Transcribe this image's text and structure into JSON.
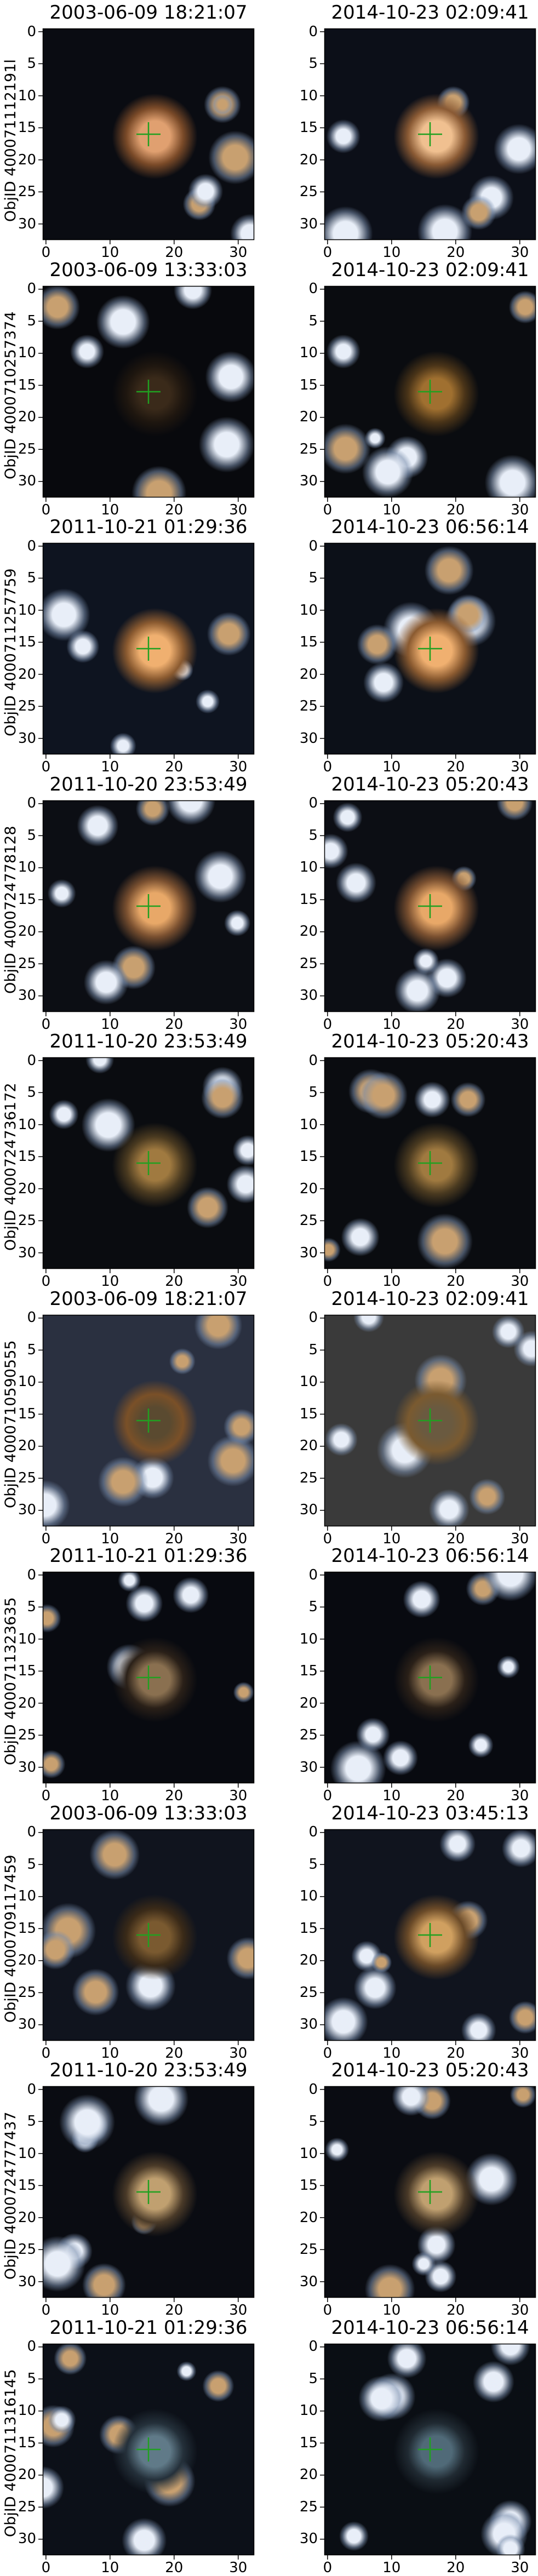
{
  "figure": {
    "x_ticks": [
      "0",
      "10",
      "20",
      "30"
    ],
    "y_ticks": [
      "0",
      "5",
      "10",
      "15",
      "20",
      "25",
      "30"
    ],
    "crosshair_color": "#20a020",
    "rows": [
      {
        "objid": "ObjID 400071112191l",
        "left": {
          "title": "2003-06-09 18:21:07"
        },
        "right": {
          "title": "2014-10-23 02:09:41"
        },
        "left_image": {
          "bg": "#0a0c12",
          "center": "#e0a070",
          "halo": "#7a4a28"
        },
        "right_image": {
          "bg": "#0c0f18",
          "center": "#f0c090",
          "halo": "#8a5a34"
        }
      },
      {
        "objid": "ObjID 4000710257374",
        "left": {
          "title": "2003-06-09 13:33:03"
        },
        "right": {
          "title": "2014-10-23 02:09:41"
        },
        "left_image": {
          "bg": "#08090d",
          "center": "#3a2a1a",
          "halo": "#1e160f"
        },
        "right_image": {
          "bg": "#0a0c10",
          "center": "#a07030",
          "halo": "#4a3418"
        }
      },
      {
        "objid": "ObjID 4000711257759",
        "left": {
          "title": "2011-10-21 01:29:36"
        },
        "right": {
          "title": "2014-10-23 06:56:14"
        },
        "left_image": {
          "bg": "#0e1420",
          "center": "#f0b070",
          "halo": "#8a5a30"
        },
        "right_image": {
          "bg": "#0c1018",
          "center": "#f0b070",
          "halo": "#8a5a30"
        }
      },
      {
        "objid": "ObjID 4000724778128",
        "left": {
          "title": "2011-10-20 23:53:49"
        },
        "right": {
          "title": "2014-10-23 05:20:43"
        },
        "left_image": {
          "bg": "#0c0e14",
          "center": "#e8a868",
          "halo": "#7a5030"
        },
        "right_image": {
          "bg": "#0c0e14",
          "center": "#e8a868",
          "halo": "#7a5030"
        }
      },
      {
        "objid": "ObjID 4000724736172",
        "left": {
          "title": "2011-10-20 23:53:49"
        },
        "right": {
          "title": "2014-10-23 05:20:43"
        },
        "left_image": {
          "bg": "#0a0c10",
          "center": "#a07a40",
          "halo": "#4a3a20"
        },
        "right_image": {
          "bg": "#0a0c10",
          "center": "#a07a40",
          "halo": "#4a3a20"
        }
      },
      {
        "objid": "ObjID 4000710590555",
        "left": {
          "title": "2003-06-09 18:21:07"
        },
        "right": {
          "title": "2014-10-23 02:09:41"
        },
        "left_image": {
          "bg": "#2a3040",
          "center": "#5a4a30",
          "halo": "#7a5028"
        },
        "right_image": {
          "bg": "#3a3a3a",
          "center": "#6a5a40",
          "halo": "#7a5a30"
        }
      },
      {
        "objid": "ObjID 4000711323635",
        "left": {
          "title": "2011-10-21 01:29:36"
        },
        "right": {
          "title": "2014-10-23 06:56:14"
        },
        "left_image": {
          "bg": "#080a10",
          "center": "#8a7050",
          "halo": "#2a2018"
        },
        "right_image": {
          "bg": "#080a10",
          "center": "#8a7050",
          "halo": "#2a2018"
        }
      },
      {
        "objid": "ObjID 4000709117459",
        "left": {
          "title": "2003-06-09 13:33:03"
        },
        "right": {
          "title": "2014-10-23 03:45:13"
        },
        "left_image": {
          "bg": "#10141e",
          "center": "#7a5a30",
          "halo": "#3a2a18"
        },
        "right_image": {
          "bg": "#10141e",
          "center": "#d0a060",
          "halo": "#6a4a28"
        }
      },
      {
        "objid": "ObjID 4000724777437",
        "left": {
          "title": "2011-10-20 23:53:49"
        },
        "right": {
          "title": "2014-10-23 05:20:43"
        },
        "left_image": {
          "bg": "#0a0c12",
          "center": "#c0a070",
          "halo": "#4a3a28"
        },
        "right_image": {
          "bg": "#0a0c12",
          "center": "#c0a070",
          "halo": "#4a3a28"
        }
      },
      {
        "objid": "ObjID 4000711316145",
        "left": {
          "title": "2011-10-21 01:29:36"
        },
        "right": {
          "title": "2014-10-23 06:56:14"
        },
        "left_image": {
          "bg": "#0c1018",
          "center": "#607a88",
          "halo": "#24303a"
        },
        "right_image": {
          "bg": "#0a0e14",
          "center": "#506a78",
          "halo": "#202a32"
        }
      }
    ]
  }
}
